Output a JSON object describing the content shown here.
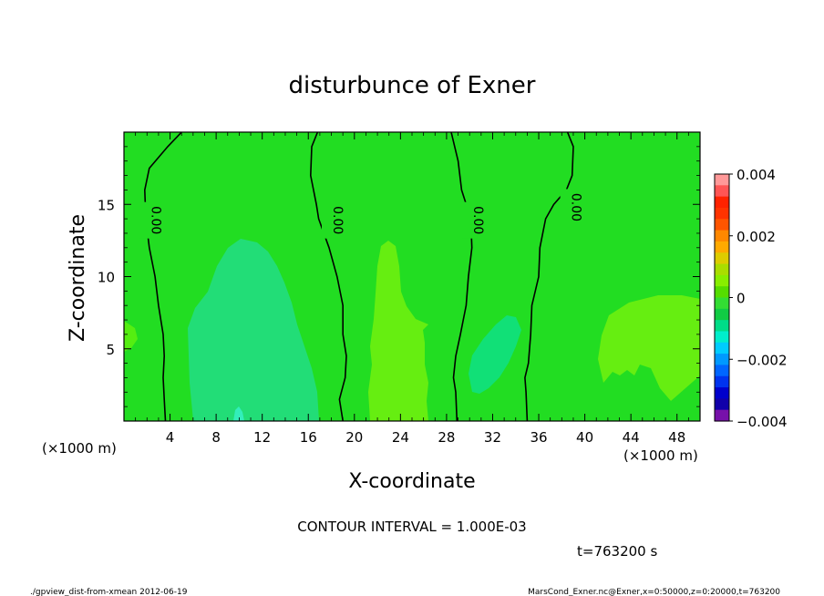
{
  "chart_data": {
    "type": "contour",
    "title": "disturbunce of Exner",
    "xlabel": "X-coordinate",
    "ylabel": "Z-coordinate",
    "x_unit_left": "(×1000 m)",
    "x_unit_right": "(×1000 m)",
    "xlim": [
      0,
      50
    ],
    "ylim": [
      0,
      20
    ],
    "x_ticks": [
      "4",
      "8",
      "12",
      "16",
      "20",
      "24",
      "28",
      "32",
      "36",
      "40",
      "44",
      "48"
    ],
    "y_ticks": [
      "5",
      "10",
      "15"
    ],
    "contour_label": "0.00",
    "contour_interval_text": "CONTOUR INTERVAL = 1.000E-03",
    "time_text": "t=763200 s",
    "footer_left": "./gpview_dist-from-xmean 2012-06-19",
    "footer_right": "MarsCond_Exner.nc@Exner,x=0:50000,z=0:20000,t=763200",
    "colorbar": {
      "labels": [
        "0.004",
        "0.002",
        "0",
        "−0.002",
        "−0.004"
      ],
      "values": [
        0.004,
        0.002,
        0,
        -0.002,
        -0.004
      ],
      "colors": [
        "#ff9999",
        "#ff5555",
        "#ff2200",
        "#ff3300",
        "#ff5500",
        "#ff8800",
        "#ffaa00",
        "#ddcc00",
        "#aadd00",
        "#88ee00",
        "#55dd00",
        "#33dd33",
        "#11cc44",
        "#00dd88",
        "#00eecc",
        "#00ccff",
        "#0099ff",
        "#0066ff",
        "#0033ee",
        "#0000cc",
        "#1100aa",
        "#7711aa"
      ]
    },
    "background_color": "#22dd22",
    "regions": [
      {
        "name": "cool-blob-x10",
        "color": "#22dd77"
      },
      {
        "name": "cool-blob-x33",
        "color": "#11e077"
      },
      {
        "name": "warm-blob-x24",
        "color": "#66ee11"
      },
      {
        "name": "warm-blob-x44",
        "color": "#66ee11"
      },
      {
        "name": "warm-edge-x0",
        "color": "#55ee11"
      }
    ],
    "contour_paths": [
      {
        "name": "zero-line-x3",
        "label_x": 2.0,
        "label_z": 13.9,
        "points": [
          [
            3.6,
            0
          ],
          [
            3.5,
            1.5
          ],
          [
            3.4,
            3
          ],
          [
            3.5,
            4.5
          ],
          [
            3.4,
            6
          ],
          [
            3.0,
            8
          ],
          [
            2.7,
            10
          ],
          [
            2.2,
            12
          ],
          [
            1.9,
            14
          ],
          [
            1.8,
            16
          ],
          [
            2.2,
            17.5
          ],
          [
            3.8,
            19
          ],
          [
            5.0,
            20
          ]
        ]
      },
      {
        "name": "zero-line-x18",
        "label_x": 17.8,
        "label_z": 13.9,
        "points": [
          [
            19.0,
            0
          ],
          [
            18.7,
            1.5
          ],
          [
            19.2,
            3
          ],
          [
            19.3,
            4.5
          ],
          [
            19.0,
            6
          ],
          [
            19.0,
            8
          ],
          [
            18.5,
            10
          ],
          [
            17.8,
            12
          ],
          [
            16.9,
            14
          ],
          [
            16.7,
            15
          ],
          [
            16.2,
            17
          ],
          [
            16.3,
            19
          ],
          [
            16.8,
            20
          ]
        ]
      },
      {
        "name": "zero-line-x29",
        "label_x": 30.0,
        "label_z": 13.9,
        "points": [
          [
            28.9,
            0
          ],
          [
            28.8,
            2
          ],
          [
            28.6,
            3
          ],
          [
            28.8,
            4.5
          ],
          [
            29.2,
            6
          ],
          [
            29.7,
            8
          ],
          [
            29.9,
            10
          ],
          [
            30.2,
            12
          ],
          [
            30.1,
            14
          ],
          [
            29.3,
            16
          ],
          [
            29.0,
            18
          ],
          [
            28.4,
            20
          ]
        ]
      },
      {
        "name": "zero-line-x35",
        "label_x": 38.5,
        "label_z": 14.8,
        "points": [
          [
            35.0,
            0
          ],
          [
            34.9,
            2
          ],
          [
            34.8,
            3
          ],
          [
            35.1,
            4
          ],
          [
            35.3,
            6
          ],
          [
            35.4,
            8
          ],
          [
            36.0,
            10
          ],
          [
            36.1,
            12
          ],
          [
            36.6,
            14
          ],
          [
            37.3,
            15
          ],
          [
            38.4,
            16
          ],
          [
            38.9,
            17
          ],
          [
            39.0,
            19
          ],
          [
            38.5,
            20
          ]
        ]
      }
    ]
  }
}
